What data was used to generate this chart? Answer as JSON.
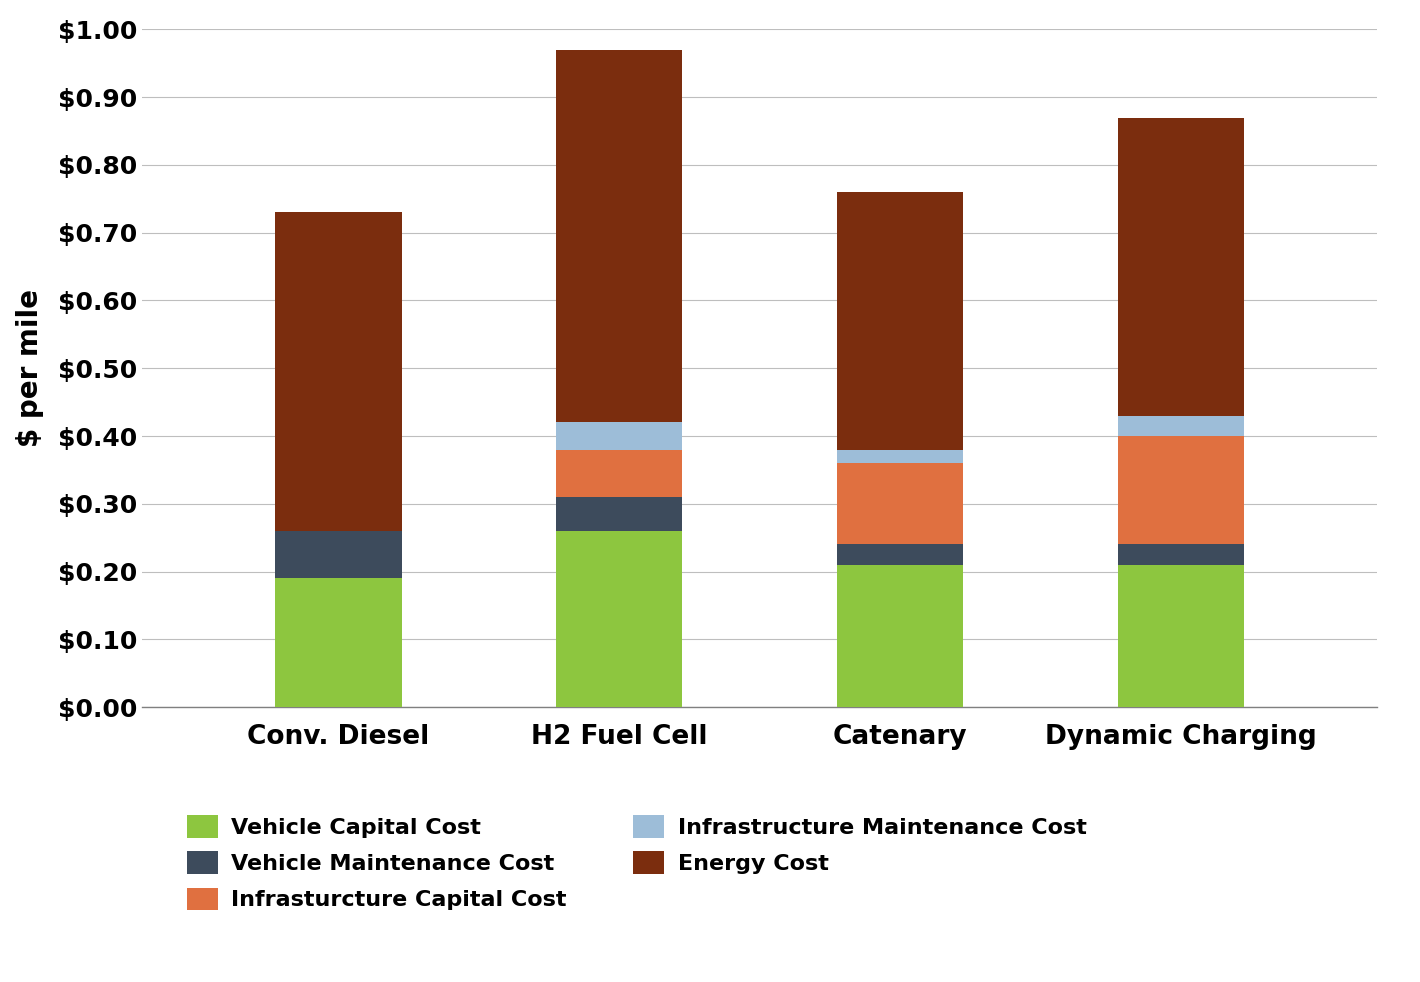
{
  "categories": [
    "Conv. Diesel",
    "H2 Fuel Cell",
    "Catenary",
    "Dynamic Charging"
  ],
  "vehicle_capital": [
    0.19,
    0.26,
    0.21,
    0.21
  ],
  "vehicle_maintenance": [
    0.07,
    0.05,
    0.03,
    0.03
  ],
  "infra_capital": [
    0.0,
    0.07,
    0.12,
    0.16
  ],
  "infra_maintenance": [
    0.0,
    0.04,
    0.02,
    0.03
  ],
  "energy_cost": [
    0.47,
    0.55,
    0.38,
    0.44
  ],
  "colors": {
    "vehicle_capital": "#8DC63F",
    "vehicle_maintenance": "#3D4B5C",
    "infra_capital": "#E07040",
    "infra_maintenance": "#9DBDD8",
    "energy_cost": "#7B2D0E"
  },
  "ylabel": "$ per mile",
  "ylim": [
    0,
    1.0
  ],
  "yticks": [
    0.0,
    0.1,
    0.2,
    0.3,
    0.4,
    0.5,
    0.6,
    0.7,
    0.8,
    0.9,
    1.0
  ],
  "legend_labels": {
    "vehicle_capital": "Vehicle Capital Cost",
    "vehicle_maintenance": "Vehicle Maintenance Cost",
    "infra_capital": "Infrasturcture Capital Cost",
    "infra_maintenance": "Infrastructure Maintenance Cost",
    "energy_cost": "Energy Cost"
  },
  "bar_width": 0.45,
  "background_color": "#FFFFFF",
  "grid_color": "#BEBEBE",
  "font_size_ticks": 18,
  "font_size_ylabel": 20,
  "font_size_legend": 16,
  "font_size_xticks": 19
}
